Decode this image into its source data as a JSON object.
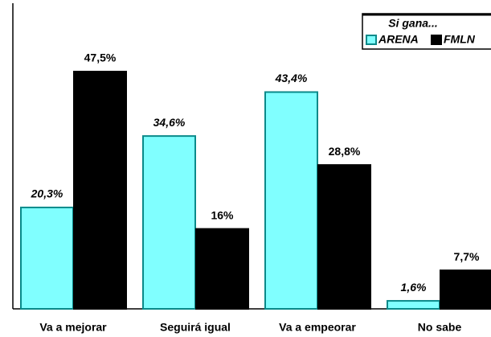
{
  "chart_data": {
    "type": "bar",
    "categories": [
      "Va a mejorar",
      "Seguirá igual",
      "Va a empeorar",
      "No sabe"
    ],
    "legend_title": "Si gana...",
    "series": [
      {
        "name": "ARENA",
        "color": "#80ffff",
        "values": [
          20.3,
          34.6,
          43.4,
          1.6
        ],
        "value_labels": [
          "20,3%",
          "34,6%",
          "43,4%",
          "1,6%"
        ]
      },
      {
        "name": "FMLN",
        "color": "#000000",
        "values": [
          47.5,
          16,
          28.8,
          7.7
        ],
        "value_labels": [
          "47,5%",
          "16%",
          "28,8%",
          "7,7%"
        ]
      }
    ]
  }
}
